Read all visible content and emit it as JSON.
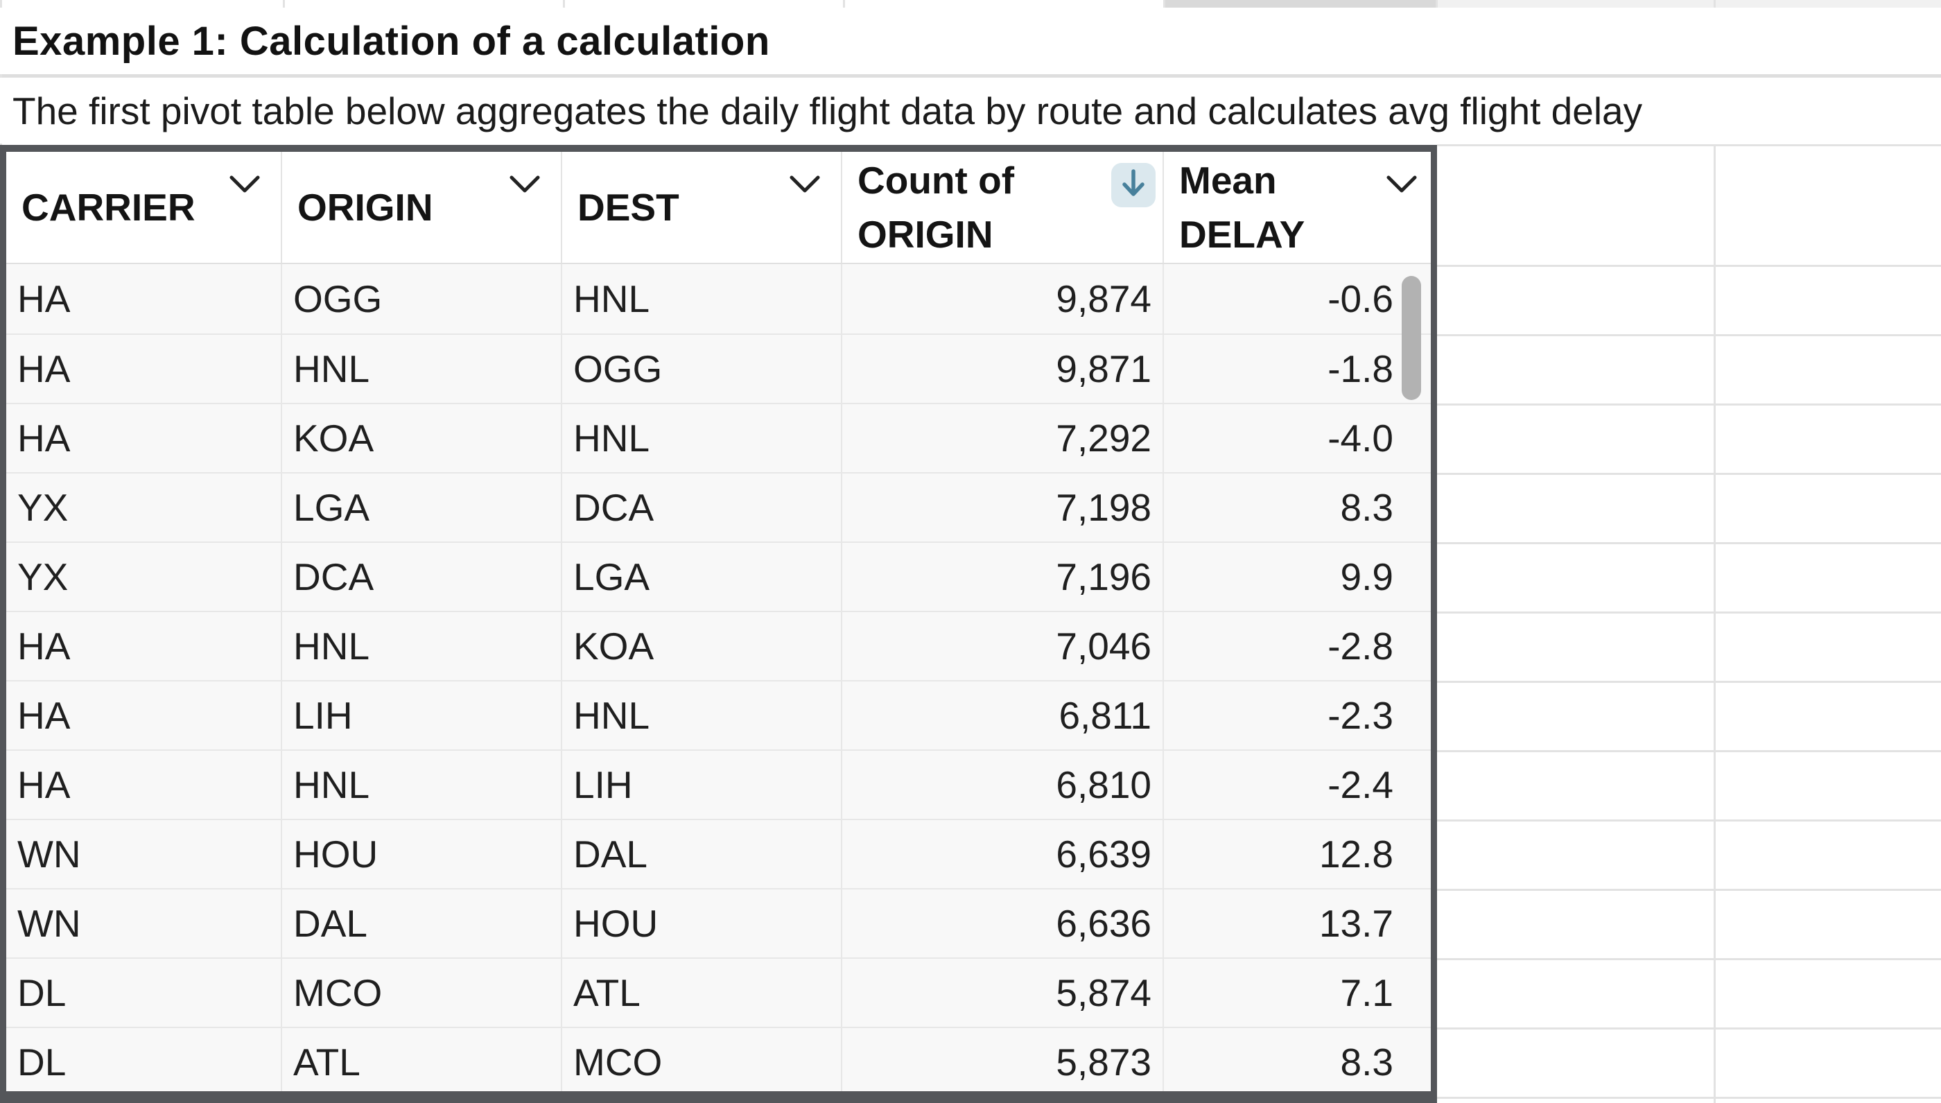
{
  "sheet": {
    "title": "Example 1: Calculation of a calculation",
    "description": "The first pivot table below aggregates the daily flight data by route and calculates avg flight delay"
  },
  "pivot": {
    "columns": [
      {
        "key": "carrier",
        "label": "CARRIER",
        "control": "chevron",
        "align": "left"
      },
      {
        "key": "origin",
        "label": "ORIGIN",
        "control": "chevron",
        "align": "left"
      },
      {
        "key": "dest",
        "label": "DEST",
        "control": "chevron",
        "align": "left"
      },
      {
        "key": "count_of_origin",
        "label": "Count of ORIGIN",
        "control": "sort-desc",
        "align": "right"
      },
      {
        "key": "mean_delay",
        "label": "Mean DELAY",
        "control": "chevron",
        "align": "right"
      }
    ],
    "rows": [
      {
        "carrier": "HA",
        "origin": "OGG",
        "dest": "HNL",
        "count_of_origin": "9,874",
        "mean_delay": "-0.6"
      },
      {
        "carrier": "HA",
        "origin": "HNL",
        "dest": "OGG",
        "count_of_origin": "9,871",
        "mean_delay": "-1.8"
      },
      {
        "carrier": "HA",
        "origin": "KOA",
        "dest": "HNL",
        "count_of_origin": "7,292",
        "mean_delay": "-4.0"
      },
      {
        "carrier": "YX",
        "origin": "LGA",
        "dest": "DCA",
        "count_of_origin": "7,198",
        "mean_delay": "8.3"
      },
      {
        "carrier": "YX",
        "origin": "DCA",
        "dest": "LGA",
        "count_of_origin": "7,196",
        "mean_delay": "9.9"
      },
      {
        "carrier": "HA",
        "origin": "HNL",
        "dest": "KOA",
        "count_of_origin": "7,046",
        "mean_delay": "-2.8"
      },
      {
        "carrier": "HA",
        "origin": "LIH",
        "dest": "HNL",
        "count_of_origin": "6,811",
        "mean_delay": "-2.3"
      },
      {
        "carrier": "HA",
        "origin": "HNL",
        "dest": "LIH",
        "count_of_origin": "6,810",
        "mean_delay": "-2.4"
      },
      {
        "carrier": "WN",
        "origin": "HOU",
        "dest": "DAL",
        "count_of_origin": "6,639",
        "mean_delay": "12.8"
      },
      {
        "carrier": "WN",
        "origin": "DAL",
        "dest": "HOU",
        "count_of_origin": "6,636",
        "mean_delay": "13.7"
      },
      {
        "carrier": "DL",
        "origin": "MCO",
        "dest": "ATL",
        "count_of_origin": "5,874",
        "mean_delay": "7.1"
      },
      {
        "carrier": "DL",
        "origin": "ATL",
        "dest": "MCO",
        "count_of_origin": "5,873",
        "mean_delay": "8.3"
      }
    ],
    "scrollbar": {
      "orientation": "vertical",
      "visible": true
    }
  },
  "icons": {
    "chevron-down": "v-shaped dropdown chevron on each column header",
    "arrow-down": "descending sort arrow on Count of ORIGIN header"
  },
  "colors": {
    "table-border": "#54565a",
    "sort-button-bg": "#dbe8ee",
    "sort-arrow": "#47809b",
    "scrollbar-thumb": "#b2b2b2",
    "selected-cell-gray": "#d9d9d9",
    "gridline": "#e2e2e2"
  }
}
